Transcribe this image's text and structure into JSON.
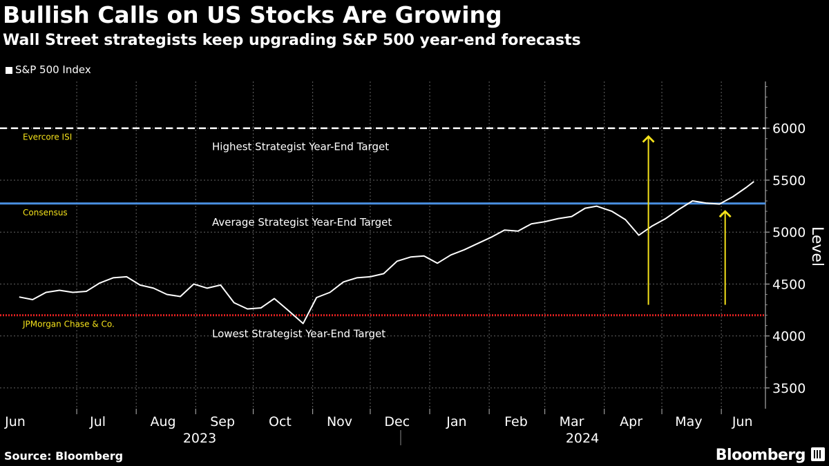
{
  "header": {
    "title": "Bullish Calls on US Stocks Are Growing",
    "subtitle": "Wall Street strategists keep upgrading S&P 500 year-end forecasts"
  },
  "footer": {
    "source": "Source: Bloomberg",
    "brand": "Bloomberg"
  },
  "colors": {
    "background": "#000000",
    "line": "#ffffff",
    "highest_target": "#ffffff",
    "average_target": "#4a90e2",
    "lowest_target": "#e02020",
    "annotation": "#f5e21b",
    "grid": "#666666"
  },
  "chart_data": {
    "type": "line",
    "title": "Bullish Calls on US Stocks Are Growing",
    "ylabel": "Level",
    "ylim": [
      3300,
      6450
    ],
    "yticks": [
      3500,
      4000,
      4500,
      5000,
      5500,
      6000
    ],
    "grid": true,
    "legend_position": "top-left",
    "x_month_labels": [
      "Jun",
      "Jul",
      "Aug",
      "Sep",
      "Oct",
      "Nov",
      "Dec",
      "Jan",
      "Feb",
      "Mar",
      "Apr",
      "May",
      "Jun"
    ],
    "x_year_labels": [
      "2023",
      "2024"
    ],
    "series": [
      {
        "name": "S&P 500 Index",
        "x": [
          "2023-06-01",
          "2023-06-08",
          "2023-06-15",
          "2023-06-22",
          "2023-06-29",
          "2023-07-06",
          "2023-07-13",
          "2023-07-20",
          "2023-07-27",
          "2023-08-03",
          "2023-08-10",
          "2023-08-17",
          "2023-08-24",
          "2023-08-31",
          "2023-09-07",
          "2023-09-14",
          "2023-09-21",
          "2023-09-28",
          "2023-10-05",
          "2023-10-12",
          "2023-10-19",
          "2023-10-27",
          "2023-11-03",
          "2023-11-10",
          "2023-11-17",
          "2023-11-24",
          "2023-12-01",
          "2023-12-08",
          "2023-12-15",
          "2023-12-22",
          "2023-12-29",
          "2024-01-05",
          "2024-01-12",
          "2024-01-19",
          "2024-01-26",
          "2024-02-02",
          "2024-02-09",
          "2024-02-16",
          "2024-02-23",
          "2024-03-01",
          "2024-03-08",
          "2024-03-15",
          "2024-03-22",
          "2024-03-28",
          "2024-04-05",
          "2024-04-12",
          "2024-04-19",
          "2024-04-26",
          "2024-05-03",
          "2024-05-10",
          "2024-05-17",
          "2024-05-24",
          "2024-05-31",
          "2024-06-07",
          "2024-06-14",
          "2024-06-18"
        ],
        "values": [
          4375,
          4350,
          4420,
          4440,
          4420,
          4430,
          4510,
          4560,
          4570,
          4490,
          4460,
          4400,
          4380,
          4500,
          4460,
          4490,
          4320,
          4260,
          4270,
          4360,
          4250,
          4120,
          4370,
          4420,
          4520,
          4560,
          4570,
          4600,
          4720,
          4760,
          4770,
          4700,
          4780,
          4830,
          4890,
          4950,
          5020,
          5010,
          5080,
          5100,
          5130,
          5150,
          5230,
          5250,
          5200,
          5120,
          4970,
          5060,
          5130,
          5220,
          5300,
          5280,
          5270,
          5340,
          5430,
          5487
        ]
      }
    ],
    "reference_lines": [
      {
        "label": "Highest Strategist Year-End Target",
        "source": "Evercore ISI",
        "value": 6000,
        "style": "dashed"
      },
      {
        "label": "Average Strategist Year-End Target",
        "source": "Consensus",
        "value": 5275,
        "style": "solid"
      },
      {
        "label": "Lowest Strategist Year-End Target",
        "source": "JPMorgan Chase & Co.",
        "value": 4200,
        "style": "dotted"
      }
    ],
    "annotations": [
      {
        "type": "arrow",
        "x": "2024-04-24",
        "from": 4300,
        "to": 5920
      },
      {
        "type": "arrow",
        "x": "2024-06-03",
        "from": 4300,
        "to": 5200
      }
    ]
  }
}
